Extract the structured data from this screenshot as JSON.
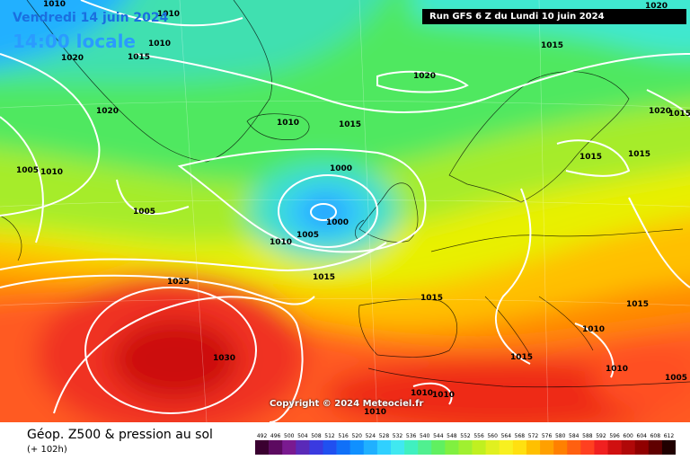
{
  "header": {
    "date": "Vendredi 14 juin 2024",
    "time": "14:00 locale",
    "run": "Run GFS 6 Z du Lundi 10 juin 2024"
  },
  "copyright": "Copyright © 2024 Meteociel.fr",
  "footer": {
    "title": "Géop. Z500 & pression au sol",
    "subtitle": "(+ 102h)"
  },
  "isobar_labels": [
    "1010",
    "1010",
    "1020",
    "1015",
    "1010",
    "1020",
    "1005",
    "1010",
    "1005",
    "1020",
    "1010",
    "1015",
    "1000",
    "1000",
    "1005",
    "1010",
    "1025",
    "1015",
    "1030",
    "1015",
    "1015",
    "1010",
    "1015",
    "1010",
    "1010",
    "1010",
    "1005",
    "1010",
    "1015",
    "1015",
    "1015",
    "1020",
    "1015",
    "1020"
  ],
  "scale": {
    "ticks": [
      "492",
      "496",
      "500",
      "504",
      "508",
      "512",
      "516",
      "520",
      "524",
      "528",
      "532",
      "536",
      "540",
      "544",
      "548",
      "552",
      "556",
      "560",
      "564",
      "568",
      "572",
      "576",
      "580",
      "584",
      "588",
      "592",
      "596",
      "600",
      "604",
      "608",
      "612"
    ],
    "colors": [
      "#3a0030",
      "#5c0a60",
      "#7a1a90",
      "#5a2ab8",
      "#3a3ae0",
      "#2050f0",
      "#1070f8",
      "#1090ff",
      "#20b0ff",
      "#30d0ff",
      "#40e8f0",
      "#40f0c0",
      "#50f090",
      "#60f060",
      "#80f040",
      "#a0f030",
      "#c0f020",
      "#e0f020",
      "#f8f020",
      "#ffe010",
      "#ffc000",
      "#ffa000",
      "#ff8000",
      "#ff6010",
      "#ff4020",
      "#f02020",
      "#d01010",
      "#b00808",
      "#900000",
      "#600000",
      "#200000"
    ]
  }
}
